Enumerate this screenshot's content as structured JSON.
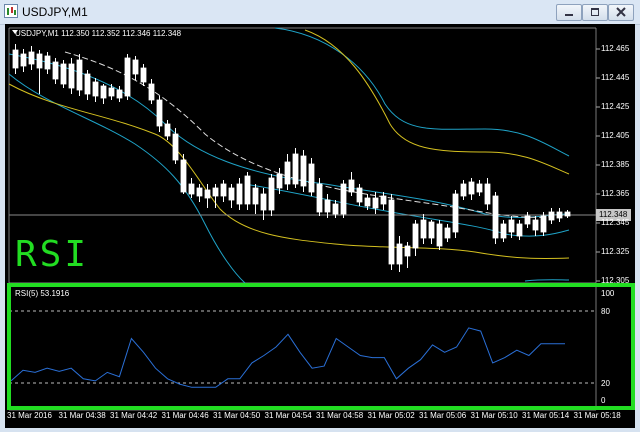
{
  "window": {
    "title": "USDJPY,M1"
  },
  "chart": {
    "symbol_info": "USDJPY,M1  112.350 112.352 112.346 112.348",
    "current_price": "112.348",
    "price_axis": [
      "112.465",
      "112.445",
      "112.425",
      "112.405",
      "112.385",
      "112.365",
      "112.345",
      "112.325",
      "112.305"
    ],
    "time_axis": [
      "31 Mar 2016",
      "31 Mar 04:38",
      "31 Mar 04:42",
      "31 Mar 04:46",
      "31 Mar 04:50",
      "31 Mar 04:54",
      "31 Mar 04:58",
      "31 Mar 05:02",
      "31 Mar 05:06",
      "31 Mar 05:10",
      "31 Mar 05:14",
      "31 Mar 05:18"
    ],
    "annotation": "RSI"
  },
  "rsi": {
    "label": "RSI(5) 53.1916",
    "axis": [
      "100",
      "80",
      "20",
      "0"
    ],
    "levels": [
      80,
      20
    ]
  },
  "colors": {
    "background": "#000000",
    "candle_up": "#ffffff",
    "candle_down": "#000000",
    "bollinger_outer": "#1fa3c7",
    "bollinger_inner": "#d4c020",
    "moving_average": "#ffffff",
    "rsi_line": "#2a6fd6",
    "highlight_box": "#22dd22",
    "annotation_text": "#22dd22"
  },
  "chart_data": {
    "type": "candlestick",
    "rsi_values": [
      18,
      28,
      26,
      30,
      27,
      30,
      20,
      18,
      26,
      22,
      58,
      45,
      30,
      20,
      15,
      12,
      12,
      12,
      20,
      20,
      35,
      42,
      50,
      62,
      45,
      30,
      32,
      58,
      50,
      42,
      40,
      40,
      20,
      30,
      38,
      52,
      45,
      50,
      68,
      65,
      35,
      40,
      47,
      42,
      53,
      53,
      53
    ]
  }
}
